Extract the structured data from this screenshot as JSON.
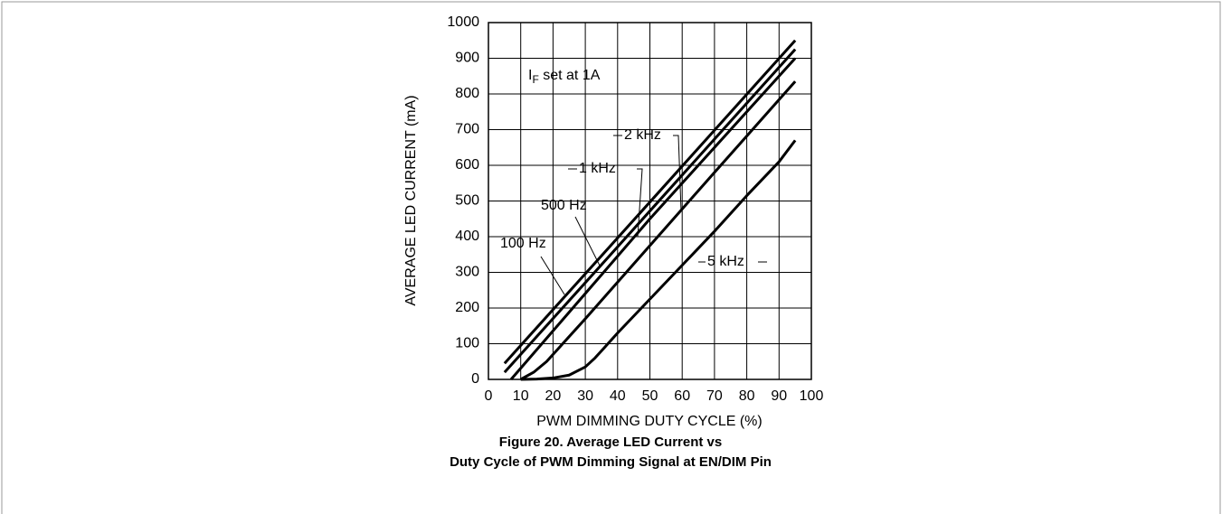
{
  "chart_data": {
    "type": "line",
    "title_lines": [
      "Figure 20. Average LED Current vs",
      "Duty Cycle of PWM Dimming Signal at EN/DIM Pin"
    ],
    "xlabel": "PWM DIMMING DUTY CYCLE (%)",
    "ylabel": "AVERAGE LED CURRENT (mA)",
    "annotation": {
      "main": "I",
      "sub": "F",
      "rest": " set at 1A"
    },
    "xlim": [
      0,
      100
    ],
    "xticks": [
      0,
      10,
      20,
      30,
      40,
      50,
      60,
      70,
      80,
      90,
      100
    ],
    "ylim": [
      0,
      1000
    ],
    "yticks": [
      0,
      100,
      200,
      300,
      400,
      500,
      600,
      700,
      800,
      900,
      1000
    ],
    "grid": true,
    "color": "#000000",
    "series": [
      {
        "name": "100 Hz",
        "x": [
          5,
          50,
          95
        ],
        "values": [
          45,
          497,
          950
        ]
      },
      {
        "name": "500 Hz",
        "x": [
          5,
          50,
          95
        ],
        "values": [
          20,
          472,
          925
        ]
      },
      {
        "name": "1 kHz",
        "x": [
          7,
          50,
          95
        ],
        "values": [
          0,
          450,
          900
        ]
      },
      {
        "name": "2 kHz",
        "x": [
          10,
          14,
          18,
          22,
          30,
          50,
          70,
          95
        ],
        "values": [
          0,
          20,
          50,
          90,
          170,
          375,
          580,
          835
        ]
      },
      {
        "name": "5 kHz",
        "x": [
          10,
          15,
          20,
          25,
          30,
          33,
          36,
          40,
          50,
          60,
          70,
          80,
          90,
          95
        ],
        "values": [
          0,
          1,
          4,
          12,
          35,
          60,
          90,
          130,
          225,
          320,
          415,
          515,
          610,
          670
        ]
      }
    ]
  }
}
